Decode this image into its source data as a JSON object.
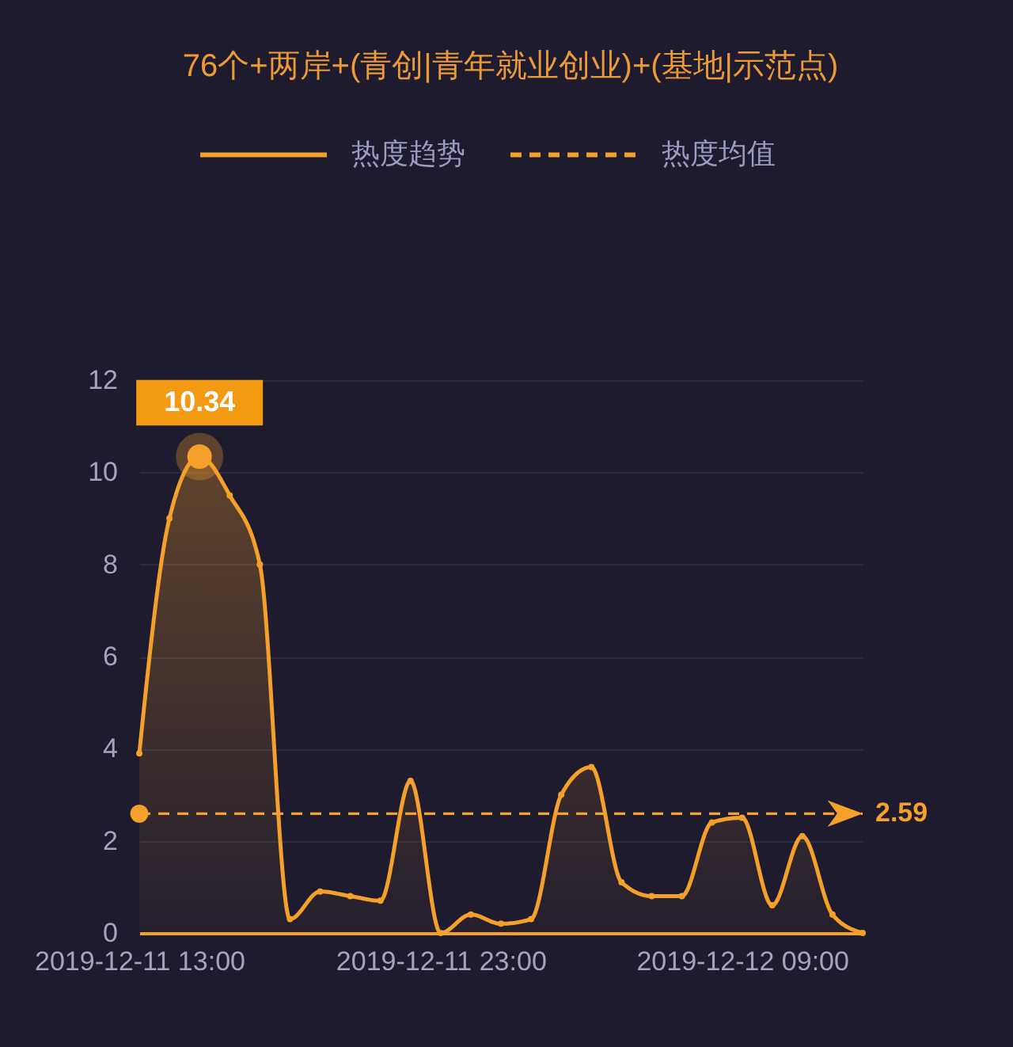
{
  "chart_data": {
    "type": "area",
    "title": "76个+两岸+(青创|青年就业创业)+(基地|示范点)",
    "x": [
      "2019-12-11T13:00",
      "2019-12-11T14:00",
      "2019-12-11T15:00",
      "2019-12-11T16:00",
      "2019-12-11T17:00",
      "2019-12-11T18:00",
      "2019-12-11T19:00",
      "2019-12-11T20:00",
      "2019-12-11T21:00",
      "2019-12-11T22:00",
      "2019-12-11T23:00",
      "2019-12-12T00:00",
      "2019-12-12T01:00",
      "2019-12-12T02:00",
      "2019-12-12T03:00",
      "2019-12-12T04:00",
      "2019-12-12T05:00",
      "2019-12-12T06:00",
      "2019-12-12T07:00",
      "2019-12-12T08:00",
      "2019-12-12T09:00",
      "2019-12-12T10:00",
      "2019-12-12T11:00",
      "2019-12-12T12:00",
      "2019-12-12T13:00"
    ],
    "xlim": [
      "2019-12-11T13:00",
      "2019-12-12T13:00"
    ],
    "xticks": [
      {
        "value": "2019-12-11T13:00",
        "label": "2019-12-11 13:00"
      },
      {
        "value": "2019-12-11T23:00",
        "label": "2019-12-11 23:00"
      },
      {
        "value": "2019-12-12T09:00",
        "label": "2019-12-12 09:00"
      }
    ],
    "ylim": [
      0,
      12
    ],
    "yticks": [
      0,
      2,
      4,
      6,
      8,
      10,
      12
    ],
    "grid": "y",
    "legend": "top",
    "marker": "circle",
    "series": [
      {
        "name": "热度趋势",
        "color": "#f5a02a",
        "values": [
          3.9,
          9.0,
          10.34,
          9.5,
          8.0,
          0.3,
          0.9,
          0.8,
          0.7,
          3.3,
          0.0,
          0.4,
          0.2,
          0.3,
          3.0,
          3.6,
          1.1,
          0.8,
          0.8,
          2.4,
          2.5,
          0.6,
          2.1,
          0.4,
          0.0
        ],
        "value_labels": [
          null,
          null,
          "10.34",
          null,
          null,
          null,
          null,
          null,
          null,
          null,
          null,
          null,
          null,
          null,
          null,
          null,
          null,
          null,
          null,
          null,
          null,
          null,
          null,
          null,
          null
        ]
      },
      {
        "name": "热度均值",
        "type": "line",
        "color": "#f5a02a",
        "line_style": "dashed",
        "x": [
          "2019-12-11T13:00",
          "2019-12-12T13:00"
        ],
        "values": [
          2.59,
          2.59
        ],
        "value_labels": [
          null,
          "2.59"
        ]
      }
    ]
  }
}
